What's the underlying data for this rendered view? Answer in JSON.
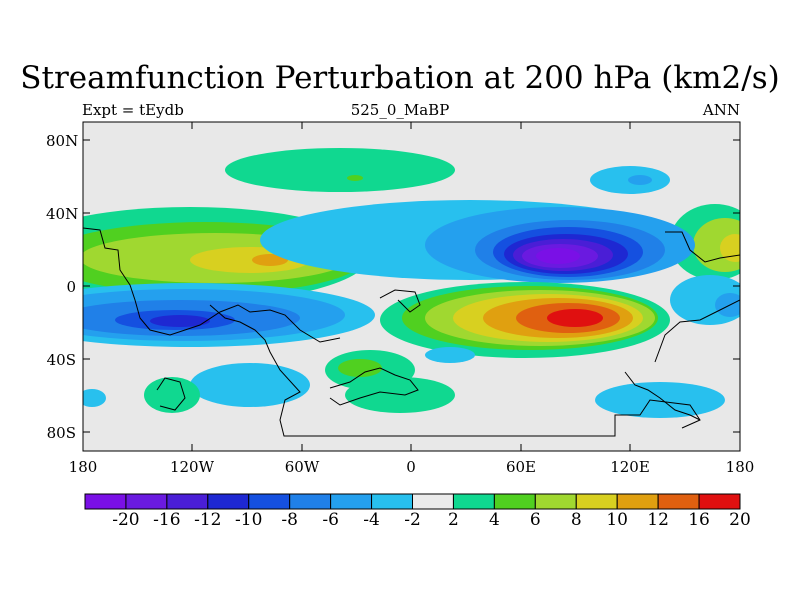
{
  "title": "Streamfunction Perturbation at 200 hPa (km2/s)",
  "subtitle_left": "Expt = tEydb",
  "subtitle_center": "525_0_MaBP",
  "subtitle_right": "ANN",
  "lat_labels": [
    "80N",
    "40N",
    "0",
    "40S",
    "80S"
  ],
  "lon_labels": [
    "180",
    "120W",
    "60W",
    "0",
    "60E",
    "120E",
    "180"
  ],
  "colorbar": {
    "labels": [
      "-20",
      "-16",
      "-12",
      "-10",
      "-8",
      "-6",
      "-4",
      "-2",
      "2",
      "4",
      "6",
      "8",
      "10",
      "12",
      "16",
      "20"
    ],
    "colors": [
      "#7a10e6",
      "#6a1ae0",
      "#4a1ed6",
      "#1e28d2",
      "#1550e0",
      "#2080e8",
      "#24a0ee",
      "#28c0ee",
      "#ebebeb",
      "#10d890",
      "#50d020",
      "#a0d830",
      "#d8d020",
      "#e0a010",
      "#e06010",
      "#e01010"
    ]
  },
  "map": {
    "background": "#e8e8e8",
    "features": [
      {
        "name": "positive-anomaly-north-pacific",
        "center_lon": -110,
        "center_lat": 20,
        "peak": 10
      },
      {
        "name": "negative-anomaly-south-pacific",
        "center_lon": -120,
        "center_lat": -18,
        "peak": -12
      },
      {
        "name": "negative-anomaly-asia",
        "center_lon": 90,
        "center_lat": 22,
        "peak": -20
      },
      {
        "name": "positive-anomaly-indian-ocean",
        "center_lon": 85,
        "center_lat": -15,
        "peak": 16
      }
    ]
  }
}
